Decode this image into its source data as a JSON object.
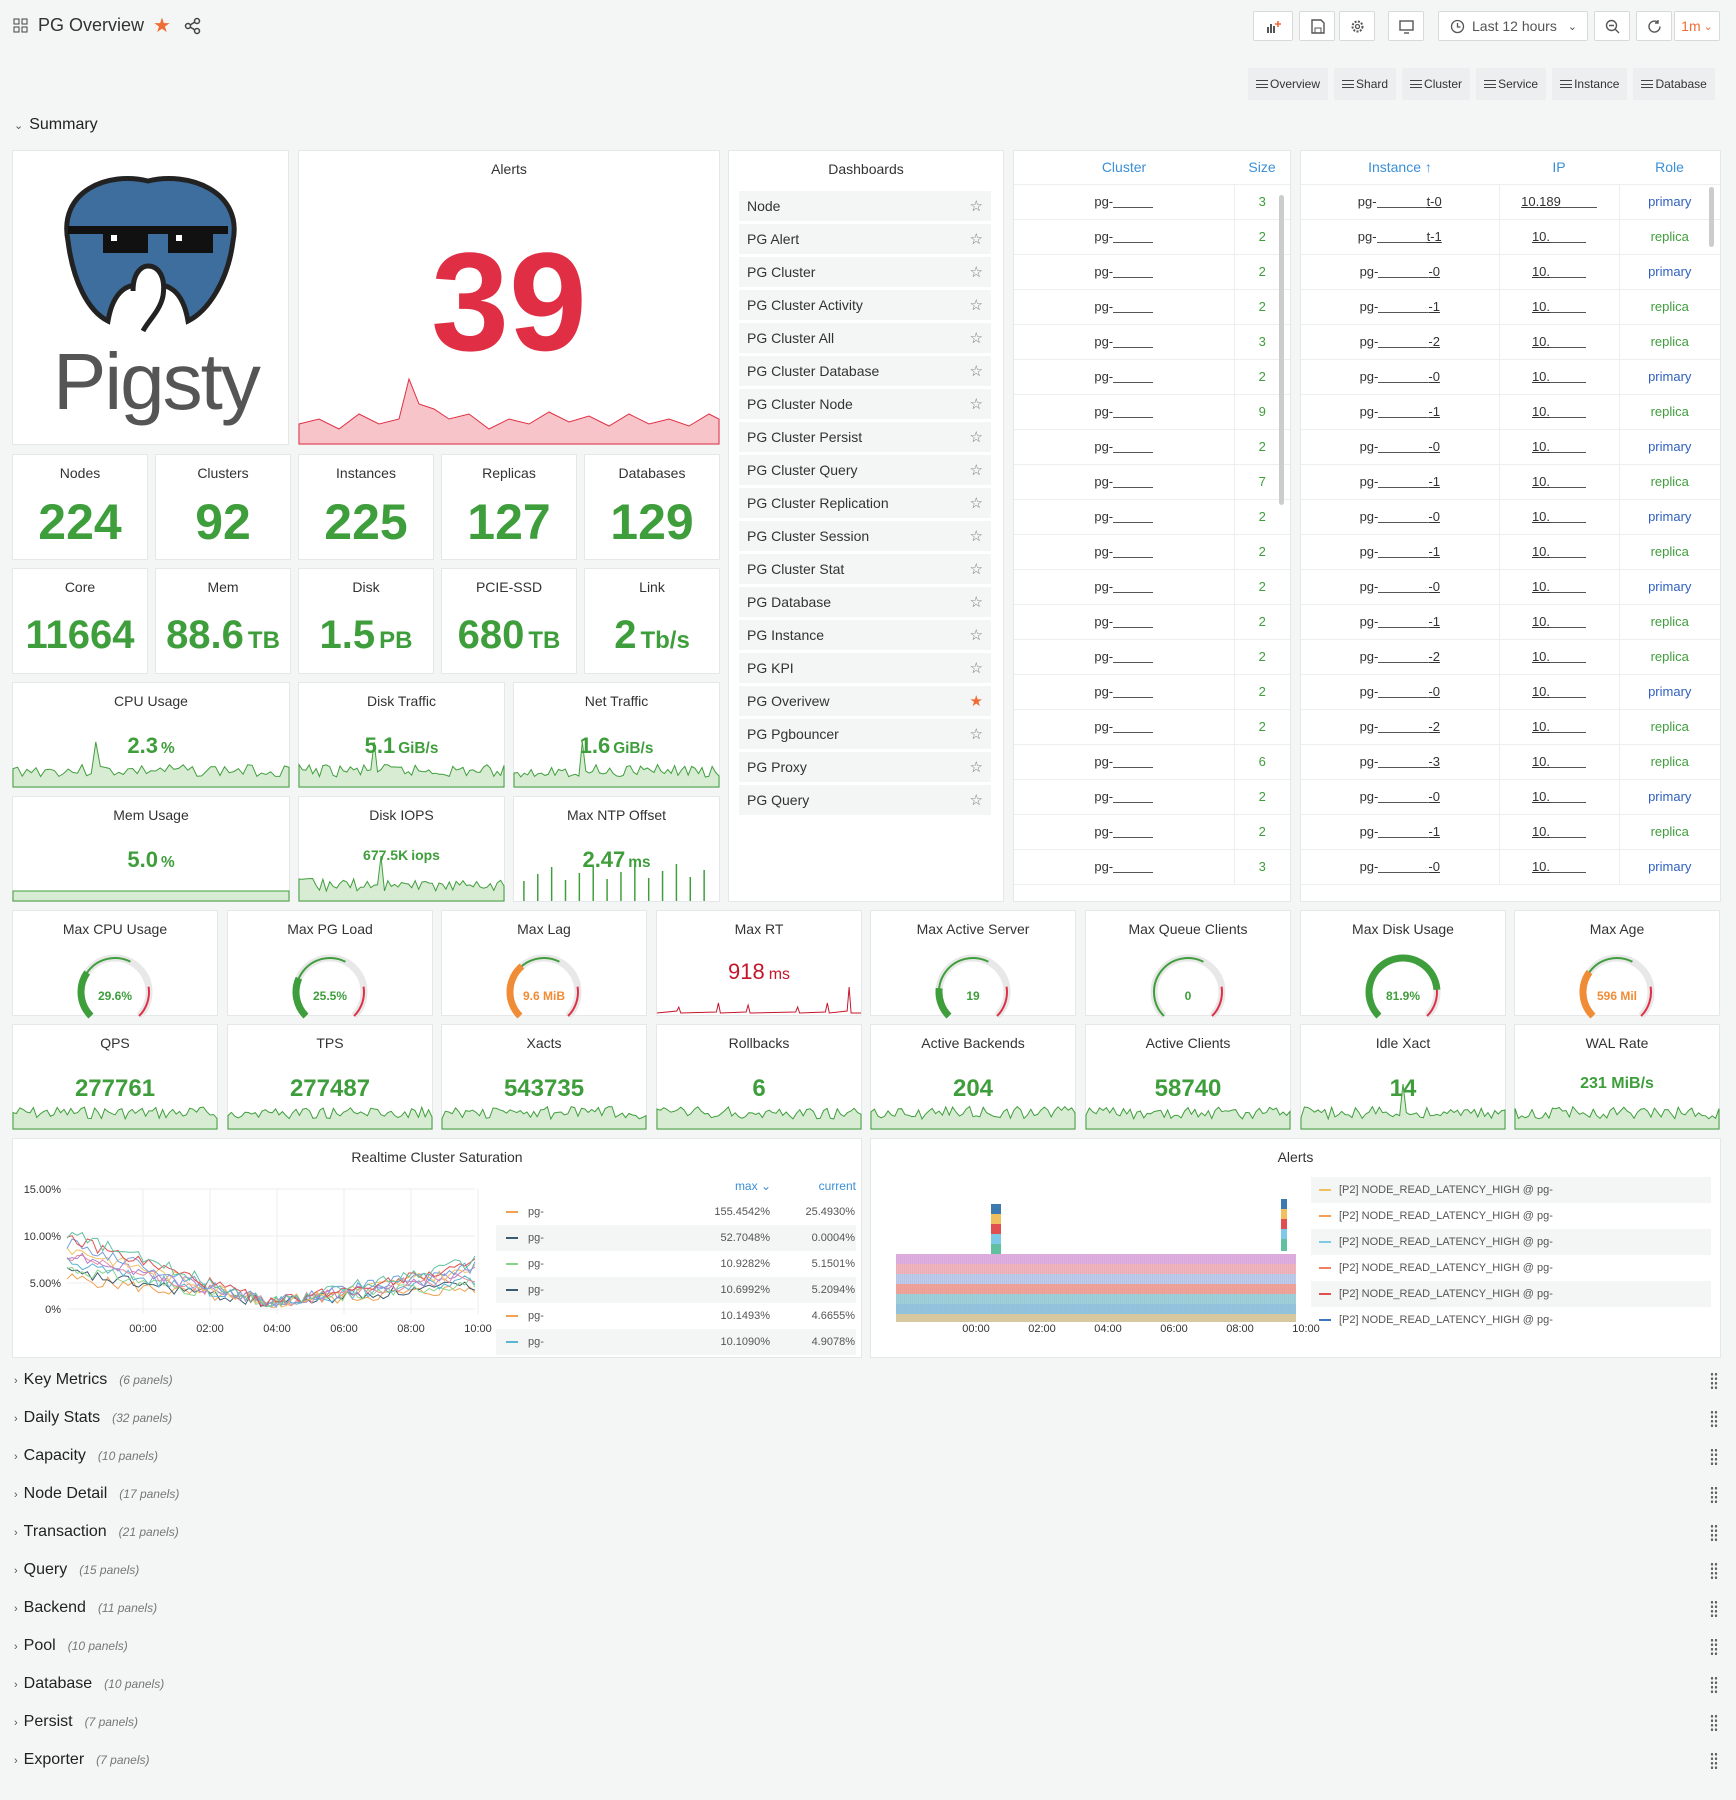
{
  "header": {
    "title": "PG Overview",
    "time_range": "Last 12 hours",
    "refresh": "1m"
  },
  "tabs": [
    "Overview",
    "Shard",
    "Cluster",
    "Service",
    "Instance",
    "Database"
  ],
  "summary_row": {
    "title": "Summary"
  },
  "logo": {
    "text": "Pigsty"
  },
  "alerts_panel": {
    "title": "Alerts",
    "value": "39"
  },
  "stats": [
    {
      "title": "Nodes",
      "value": "224",
      "unit": ""
    },
    {
      "title": "Clusters",
      "value": "92",
      "unit": ""
    },
    {
      "title": "Instances",
      "value": "225",
      "unit": ""
    },
    {
      "title": "Replicas",
      "value": "127",
      "unit": ""
    },
    {
      "title": "Databases",
      "value": "129",
      "unit": ""
    },
    {
      "title": "Core",
      "value": "11664",
      "unit": ""
    },
    {
      "title": "Mem",
      "value": "88.6",
      "unit": "TB"
    },
    {
      "title": "Disk",
      "value": "1.5",
      "unit": "PB"
    },
    {
      "title": "PCIE-SSD",
      "value": "680",
      "unit": "TB"
    },
    {
      "title": "Link",
      "value": "2",
      "unit": "Tb/s"
    }
  ],
  "spark_stats": [
    {
      "title": "CPU Usage",
      "value": "2.3",
      "unit": "%"
    },
    {
      "title": "Disk Traffic",
      "value": "5.1",
      "unit": "GiB/s"
    },
    {
      "title": "Net Traffic",
      "value": "1.6",
      "unit": "GiB/s"
    },
    {
      "title": "Mem Usage",
      "value": "5.0",
      "unit": "%"
    },
    {
      "title": "Disk IOPS",
      "value": "677.5K",
      "unit": "iops"
    },
    {
      "title": "Max NTP Offset",
      "value": "2.47",
      "unit": "ms"
    }
  ],
  "dashboards": {
    "title": "Dashboards",
    "items": [
      "Node",
      "PG Alert",
      "PG Cluster",
      "PG Cluster Activity",
      "PG Cluster All",
      "PG Cluster Database",
      "PG Cluster Node",
      "PG Cluster Persist",
      "PG Cluster Query",
      "PG Cluster Replication",
      "PG Cluster Session",
      "PG Cluster Stat",
      "PG Database",
      "PG Instance",
      "PG KPI",
      "PG Overivew",
      "PG Pgbouncer",
      "PG Proxy",
      "PG Query"
    ],
    "starred_index": 15
  },
  "cluster_table": {
    "headers": [
      "Cluster",
      "Size"
    ],
    "rows": [
      [
        "pg-",
        "3"
      ],
      [
        "pg-",
        "2"
      ],
      [
        "pg-",
        "2"
      ],
      [
        "pg-",
        "2"
      ],
      [
        "pg-",
        "3"
      ],
      [
        "pg-",
        "2"
      ],
      [
        "pg-",
        "9"
      ],
      [
        "pg-",
        "2"
      ],
      [
        "pg-",
        "7"
      ],
      [
        "pg-",
        "2"
      ],
      [
        "pg-",
        "2"
      ],
      [
        "pg-",
        "2"
      ],
      [
        "pg-",
        "2"
      ],
      [
        "pg-",
        "2"
      ],
      [
        "pg-",
        "2"
      ],
      [
        "pg-",
        "2"
      ],
      [
        "pg-",
        "6"
      ],
      [
        "pg-",
        "2"
      ],
      [
        "pg-",
        "2"
      ],
      [
        "pg-",
        "3"
      ]
    ]
  },
  "instance_table": {
    "headers": [
      "Instance ↑",
      "IP",
      "Role"
    ],
    "rows": [
      [
        "pg-",
        "t-0",
        "10.189",
        "primary"
      ],
      [
        "pg-",
        "t-1",
        "10.",
        "replica"
      ],
      [
        "pg-",
        "-0",
        "10.",
        "primary"
      ],
      [
        "pg-",
        "-1",
        "10.",
        "replica"
      ],
      [
        "pg-",
        "-2",
        "10.",
        "replica"
      ],
      [
        "pg-",
        "-0",
        "10.",
        "primary"
      ],
      [
        "pg-",
        "-1",
        "10.",
        "replica"
      ],
      [
        "pg-",
        "-0",
        "10.",
        "primary"
      ],
      [
        "pg-",
        "-1",
        "10.",
        "replica"
      ],
      [
        "pg-",
        "-0",
        "10.",
        "primary"
      ],
      [
        "pg-",
        "-1",
        "10.",
        "replica"
      ],
      [
        "pg-",
        "-0",
        "10.",
        "primary"
      ],
      [
        "pg-",
        "-1",
        "10.",
        "replica"
      ],
      [
        "pg-",
        "-2",
        "10.",
        "replica"
      ],
      [
        "pg-",
        "-0",
        "10.",
        "primary"
      ],
      [
        "pg-",
        "-2",
        "10.",
        "replica"
      ],
      [
        "pg-",
        "-3",
        "10.",
        "replica"
      ],
      [
        "pg-",
        "-0",
        "10.",
        "primary"
      ],
      [
        "pg-",
        "-1",
        "10.",
        "replica"
      ],
      [
        "pg-",
        "-0",
        "10.",
        "primary"
      ]
    ]
  },
  "gauges": [
    {
      "title": "Max CPU Usage",
      "value": "29.6%",
      "pct": 0.296,
      "color": "#3f9e3c"
    },
    {
      "title": "Max PG Load",
      "value": "25.5%",
      "pct": 0.255,
      "color": "#3f9e3c"
    },
    {
      "title": "Max Lag",
      "value": "9.6 MiB",
      "pct": 0.35,
      "color": "#f08c36"
    },
    {
      "title": "Max Active Server",
      "value": "19",
      "pct": 0.19,
      "color": "#3f9e3c"
    },
    {
      "title": "Max Queue Clients",
      "value": "0",
      "pct": 0,
      "color": "#3f9e3c"
    },
    {
      "title": "Max Disk Usage",
      "value": "81.9%",
      "pct": 0.819,
      "color": "#3f9e3c"
    },
    {
      "title": "Max Age",
      "value": "596 Mil",
      "pct": 0.3,
      "color": "#f08c36"
    }
  ],
  "max_rt": {
    "title": "Max RT",
    "value": "918",
    "unit": "ms"
  },
  "counters": [
    {
      "title": "QPS",
      "value": "277761"
    },
    {
      "title": "TPS",
      "value": "277487"
    },
    {
      "title": "Xacts",
      "value": "543735"
    },
    {
      "title": "Rollbacks",
      "value": "6"
    },
    {
      "title": "Active Backends",
      "value": "204"
    },
    {
      "title": "Active Clients",
      "value": "58740"
    },
    {
      "title": "Idle Xact",
      "value": "14"
    },
    {
      "title": "WAL Rate",
      "value": "231 MiB/s"
    }
  ],
  "saturation": {
    "title": "Realtime Cluster Saturation",
    "y_ticks": [
      "15.00%",
      "10.00%",
      "5.00%",
      "0%"
    ],
    "x_ticks": [
      "00:00",
      "02:00",
      "04:00",
      "06:00",
      "08:00",
      "10:00"
    ],
    "legend_headers": [
      "max ⌄",
      "current"
    ],
    "legend": [
      {
        "name": "pg-",
        "max": "155.4542%",
        "current": "25.4930%",
        "color": "#f0a050"
      },
      {
        "name": "pg-",
        "max": "52.7048%",
        "current": "0.0004%",
        "color": "#3c5a70"
      },
      {
        "name": "pg-",
        "max": "10.9282%",
        "current": "5.1501%",
        "color": "#8ad48a"
      },
      {
        "name": "pg-",
        "max": "10.6992%",
        "current": "5.2094%",
        "color": "#3c5a70"
      },
      {
        "name": "pg-",
        "max": "10.1493%",
        "current": "4.6655%",
        "color": "#f0a050"
      },
      {
        "name": "pg-",
        "max": "10.1090%",
        "current": "4.9078%",
        "color": "#5ab4d0"
      }
    ]
  },
  "alerts_chart": {
    "title": "Alerts",
    "x_ticks": [
      "00:00",
      "02:00",
      "04:00",
      "06:00",
      "08:00",
      "10:00"
    ],
    "legend": [
      {
        "name": "[P2] NODE_READ_LATENCY_HIGH @ pg-",
        "color": "#f0c060"
      },
      {
        "name": "[P2] NODE_READ_LATENCY_HIGH @ pg-",
        "color": "#f0a050"
      },
      {
        "name": "[P2] NODE_READ_LATENCY_HIGH @ pg-",
        "color": "#7ec8e8"
      },
      {
        "name": "[P2] NODE_READ_LATENCY_HIGH @ pg-",
        "color": "#f08060"
      },
      {
        "name": "[P2] NODE_READ_LATENCY_HIGH @ pg-",
        "color": "#e05050"
      },
      {
        "name": "[P2] NODE_READ_LATENCY_HIGH @ pg-",
        "color": "#3a78c0"
      }
    ]
  },
  "collapsed_rows": [
    {
      "title": "Key Metrics",
      "count": "(6 panels)"
    },
    {
      "title": "Daily Stats",
      "count": "(32 panels)"
    },
    {
      "title": "Capacity",
      "count": "(10 panels)"
    },
    {
      "title": "Node Detail",
      "count": "(17 panels)"
    },
    {
      "title": "Transaction",
      "count": "(21 panels)"
    },
    {
      "title": "Query",
      "count": "(15 panels)"
    },
    {
      "title": "Backend",
      "count": "(11 panels)"
    },
    {
      "title": "Pool",
      "count": "(10 panels)"
    },
    {
      "title": "Database",
      "count": "(10 panels)"
    },
    {
      "title": "Persist",
      "count": "(7 panels)"
    },
    {
      "title": "Exporter",
      "count": "(7 panels)"
    }
  ]
}
